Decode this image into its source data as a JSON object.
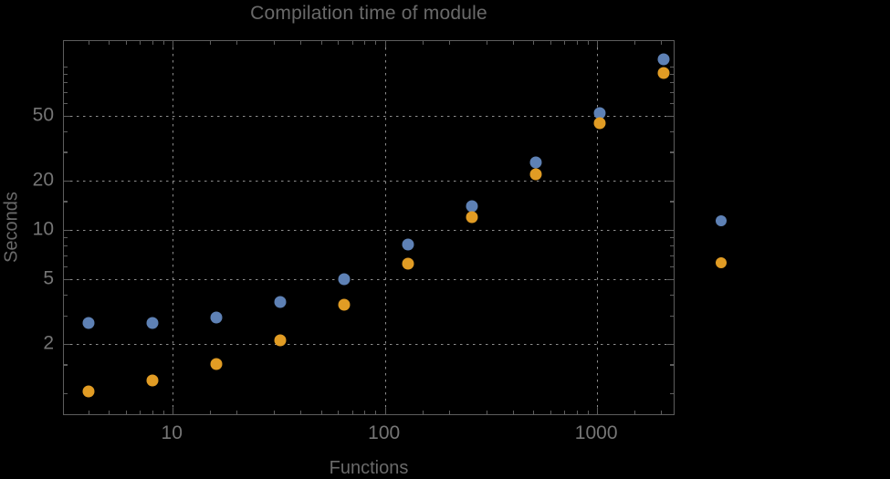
{
  "title": "Compilation time of module",
  "colors": {
    "background": "#000000",
    "frame": "#5d5d5d",
    "grid": "#8e8e8e",
    "title_text": "#6a6a6a",
    "tick_text": "#757575",
    "series_blue": "#5e81b5",
    "series_orange": "#e19c24"
  },
  "chart_data": {
    "type": "scatter",
    "title": "Compilation time of module",
    "xlabel": "Functions",
    "ylabel": "Seconds",
    "x_scale": "log",
    "y_scale": "log",
    "grid": "dotted",
    "xlim": [
      3.07,
      2340
    ],
    "ylim": [
      0.725,
      143
    ],
    "x": [
      4,
      8,
      16,
      32,
      64,
      128,
      256,
      512,
      1024,
      2048
    ],
    "series": [
      {
        "name": "series-1-blue",
        "color": "#5e81b5",
        "values": [
          2.7,
          2.7,
          2.9,
          3.6,
          5.0,
          8.1,
          14,
          26,
          52,
          111
        ]
      },
      {
        "name": "series-2-orange",
        "color": "#e19c24",
        "values": [
          1.02,
          1.2,
          1.5,
          2.1,
          3.5,
          6.2,
          12,
          22,
          45,
          91
        ]
      }
    ],
    "x_gridlines": [
      10,
      100,
      1000
    ],
    "y_gridlines": [
      2,
      5,
      10,
      20,
      50
    ],
    "x_major_ticks": [
      10,
      100,
      1000
    ],
    "x_major_labels": [
      "10",
      "100",
      "1000"
    ],
    "x_minor_ticks": [
      4,
      5,
      6,
      7,
      8,
      9,
      15,
      20,
      30,
      40,
      50,
      60,
      70,
      80,
      90,
      150,
      200,
      300,
      400,
      500,
      600,
      700,
      800,
      900,
      1500,
      2000
    ],
    "y_major_ticks": [
      2,
      5,
      10,
      20,
      50
    ],
    "y_major_labels": [
      "2",
      "5",
      "10",
      "20",
      "50"
    ],
    "y_minor_ticks": [
      1,
      1.5,
      3,
      4,
      6,
      7,
      8,
      9,
      15,
      30,
      40,
      60,
      70,
      80,
      90,
      100
    ],
    "legend": {
      "position": "right-outside",
      "markers": [
        {
          "name": "series-1-blue",
          "color": "#5e81b5"
        },
        {
          "name": "series-2-orange",
          "color": "#e19c24"
        }
      ]
    }
  }
}
